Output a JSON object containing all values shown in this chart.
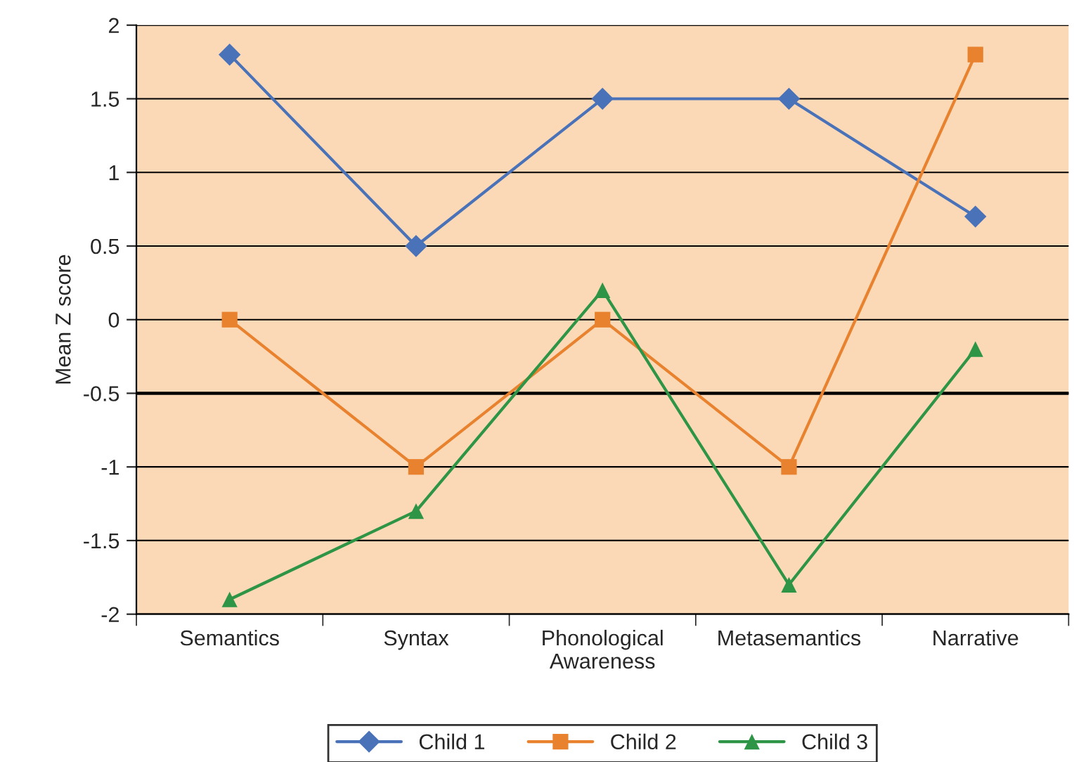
{
  "chart_data": {
    "type": "line",
    "ylabel": "Mean Z score",
    "categories": [
      "Semantics",
      "Syntax",
      "Phonological\nAwareness",
      "Metasemantics",
      "Narrative"
    ],
    "series": [
      {
        "name": "Child 1",
        "color": "#4a72b8",
        "marker": "diamond",
        "values": [
          1.8,
          0.5,
          1.5,
          1.5,
          0.7
        ]
      },
      {
        "name": "Child 2",
        "color": "#e8822f",
        "marker": "square",
        "values": [
          0,
          -1,
          0,
          -1,
          1.8
        ]
      },
      {
        "name": "Child 3",
        "color": "#2e9547",
        "marker": "triangle",
        "values": [
          -1.9,
          -1.3,
          0.2,
          -1.8,
          -0.2
        ]
      }
    ],
    "ylim": [
      -2,
      2
    ],
    "yticks": [
      -2,
      -1.5,
      -1,
      -0.5,
      0,
      0.5,
      1,
      1.5,
      2
    ],
    "ref_lines": [
      {
        "axis": "y",
        "value": -0.5,
        "color": "#000000"
      }
    ],
    "grid": "y",
    "legend": "bottom",
    "line_style": "solid"
  }
}
